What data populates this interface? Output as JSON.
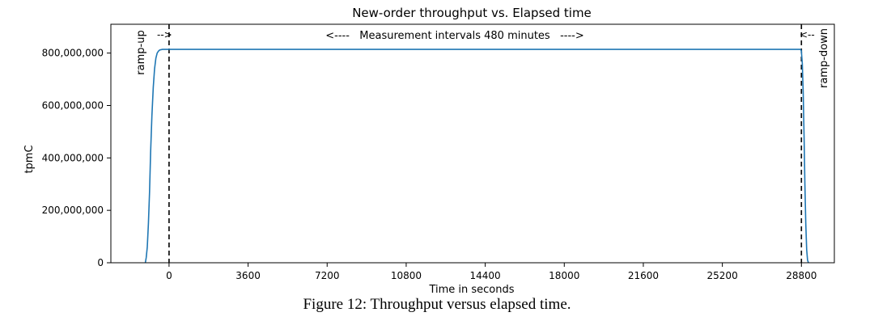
{
  "chart_data": {
    "type": "line",
    "title": "New-order throughput vs. Elapsed time",
    "xlabel": "Time in seconds",
    "ylabel": "tpmC",
    "xlim": [
      -2650,
      30300
    ],
    "ylim": [
      0,
      910000000
    ],
    "x_ticks": [
      0,
      3600,
      7200,
      10800,
      14400,
      18000,
      21600,
      25200,
      28800
    ],
    "y_ticks": [
      0,
      200000000,
      400000000,
      600000000,
      800000000
    ],
    "y_tick_labels": [
      "0",
      "200,000,000",
      "400,000,000",
      "600,000,000",
      "800,000,000"
    ],
    "grid": false,
    "series": [
      {
        "color": "#1f77b4",
        "x": [
          -1080,
          -1040,
          -990,
          -940,
          -890,
          -840,
          -780,
          -720,
          -660,
          -600,
          -540,
          -480,
          -420,
          -360,
          -300,
          28680,
          28740,
          28780,
          28800,
          28840,
          28880,
          28920,
          28960,
          29000,
          29040,
          29080,
          29120
        ],
        "y": [
          0,
          20000000,
          60000000,
          150000000,
          270000000,
          420000000,
          560000000,
          670000000,
          740000000,
          780000000,
          800000000,
          808000000,
          812000000,
          813000000,
          814000000,
          814000000,
          814000000,
          812000000,
          805000000,
          760000000,
          650000000,
          480000000,
          300000000,
          150000000,
          50000000,
          10000000,
          0
        ]
      }
    ],
    "vlines": [
      {
        "x": 0,
        "style": "dashed",
        "color": "#000000"
      },
      {
        "x": 28800,
        "style": "dashed",
        "color": "#000000"
      }
    ],
    "annotations": {
      "ramp_up": "ramp-up",
      "ramp_up_arrow": "-->",
      "measurement": "<----   Measurement intervals 480 minutes   ---->",
      "ramp_down_arrow": "<--",
      "ramp_down": "ramp-down"
    }
  },
  "caption": "Figure 12: Throughput versus elapsed time."
}
